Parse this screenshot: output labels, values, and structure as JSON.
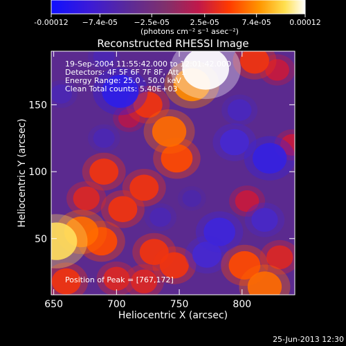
{
  "chart_data": {
    "type": "heatmap",
    "title": "Reconstructed RHESSI Image",
    "xlabel": "Heliocentric X (arcsec)",
    "ylabel": "Heliocentric Y (arcsec)",
    "xlim": [
      648,
      842
    ],
    "ylim": [
      8,
      190
    ],
    "x_ticks": [
      650,
      700,
      750,
      800
    ],
    "y_ticks": [
      50,
      100,
      150
    ],
    "colorbar": {
      "range": [
        -0.00012,
        0.00012
      ],
      "tick_values": [
        -0.00012,
        -7.4e-05,
        -2.5e-05,
        2.5e-05,
        7.4e-05,
        0.00012
      ],
      "tick_labels": [
        "-0.00012",
        "−7.4e-05",
        "−2.5e-05",
        "2.5e-05",
        "7.4e-05",
        "0.00012"
      ],
      "unit_label": "(photons cm⁻² s⁻¹ asec⁻²)",
      "colors": [
        "#1010ff",
        "#4b1ec7",
        "#5a2a9a",
        "#7d2a6f",
        "#b11a4e",
        "#ff3a00",
        "#ff9a00",
        "#ffff80",
        "#ffffff"
      ]
    },
    "annotations": [
      "19-Sep-2004 11:55:42.000 to 12:01:42.000",
      "Detectors: 4F 5F 6F 7F 8F, Att 1",
      "Energy Range: 25.0 - 50.0 keV",
      "Clean     Total counts: 5.40E+03"
    ],
    "peak_label": "Position of Peak = [767,172]",
    "peak": [
      767,
      172
    ],
    "footer_date": "25-Jun-2013 12:30",
    "blobs": [
      {
        "x": 771,
        "y": 177,
        "v": 0.00013
      },
      {
        "x": 760,
        "y": 165,
        "v": 9e-05
      },
      {
        "x": 742,
        "y": 130,
        "v": 8e-05
      },
      {
        "x": 748,
        "y": 110,
        "v": 7e-05
      },
      {
        "x": 725,
        "y": 150,
        "v": 6e-05
      },
      {
        "x": 710,
        "y": 140,
        "v": 3e-05
      },
      {
        "x": 652,
        "y": 48,
        "v": 0.00011
      },
      {
        "x": 672,
        "y": 55,
        "v": 8e-05
      },
      {
        "x": 688,
        "y": 48,
        "v": 7e-05
      },
      {
        "x": 705,
        "y": 72,
        "v": 6e-05
      },
      {
        "x": 690,
        "y": 100,
        "v": 6e-05
      },
      {
        "x": 676,
        "y": 80,
        "v": 5e-05
      },
      {
        "x": 700,
        "y": 20,
        "v": 5e-05
      },
      {
        "x": 722,
        "y": 88,
        "v": 6e-05
      },
      {
        "x": 730,
        "y": 40,
        "v": 6e-05
      },
      {
        "x": 746,
        "y": 30,
        "v": 6e-05
      },
      {
        "x": 722,
        "y": 18,
        "v": 5e-05
      },
      {
        "x": 802,
        "y": 30,
        "v": 7e-05
      },
      {
        "x": 818,
        "y": 14,
        "v": 8e-05
      },
      {
        "x": 830,
        "y": 36,
        "v": 5e-05
      },
      {
        "x": 804,
        "y": 78,
        "v": 4e-05
      },
      {
        "x": 810,
        "y": 183,
        "v": 6e-05
      },
      {
        "x": 828,
        "y": 176,
        "v": 4e-05
      },
      {
        "x": 840,
        "y": 120,
        "v": 4e-05
      },
      {
        "x": 660,
        "y": 18,
        "v": 6e-05
      },
      {
        "x": 703,
        "y": 160,
        "v": -9e-05
      },
      {
        "x": 690,
        "y": 125,
        "v": -3e-05
      },
      {
        "x": 822,
        "y": 110,
        "v": -8e-05
      },
      {
        "x": 794,
        "y": 122,
        "v": -6e-05
      },
      {
        "x": 782,
        "y": 55,
        "v": -7e-05
      },
      {
        "x": 772,
        "y": 38,
        "v": -6e-05
      },
      {
        "x": 798,
        "y": 146,
        "v": -4e-05
      },
      {
        "x": 818,
        "y": 64,
        "v": -5e-05
      },
      {
        "x": 656,
        "y": 158,
        "v": -3e-05
      },
      {
        "x": 690,
        "y": 186,
        "v": -3e-05
      },
      {
        "x": 760,
        "y": 80,
        "v": -2e-05
      },
      {
        "x": 735,
        "y": 66,
        "v": -3e-05
      }
    ]
  }
}
